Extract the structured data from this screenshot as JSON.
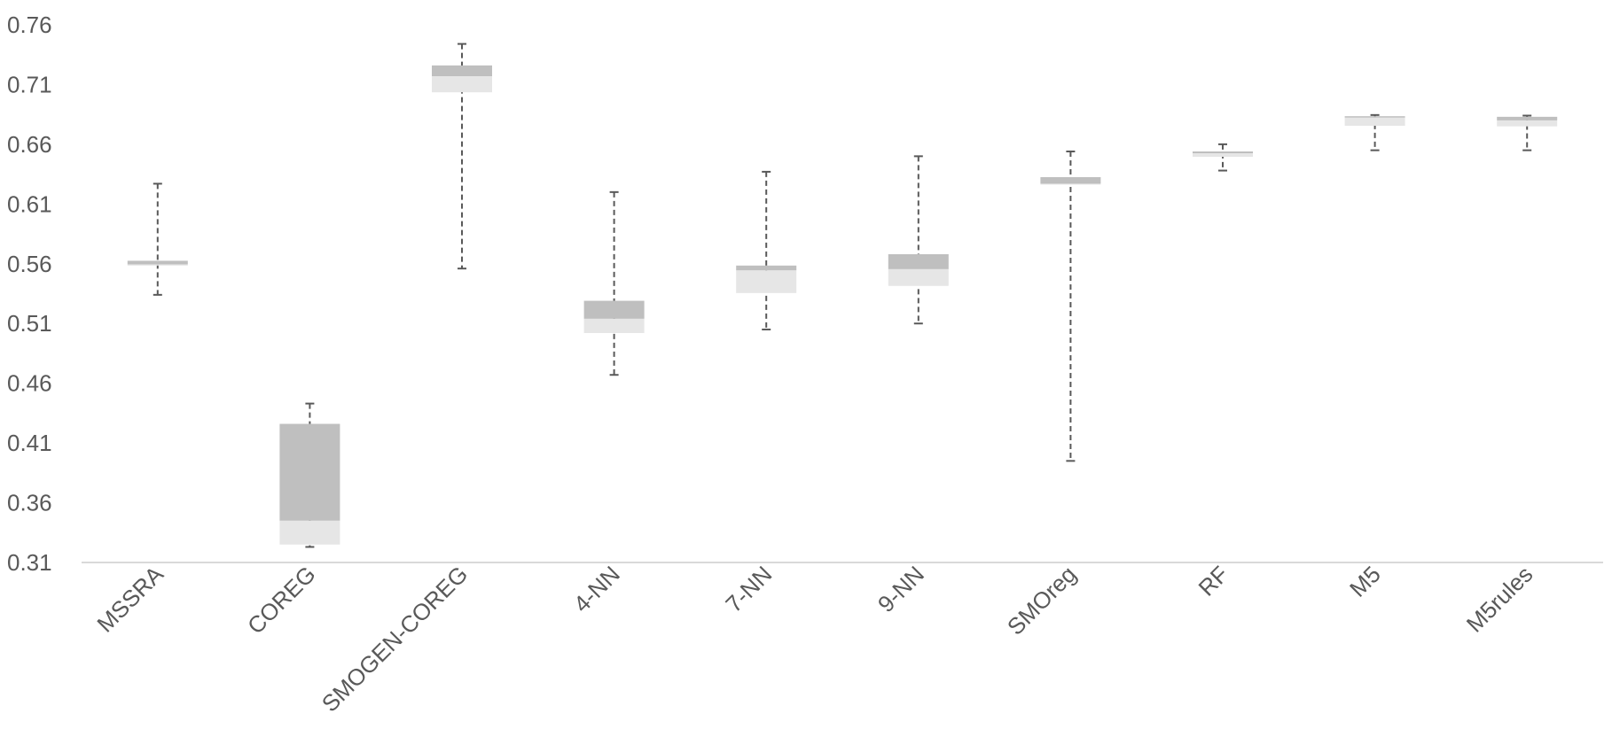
{
  "chart_data": {
    "type": "box",
    "ylim": [
      0.31,
      0.76
    ],
    "yticks": [
      "0.31",
      "0.36",
      "0.41",
      "0.46",
      "0.51",
      "0.56",
      "0.61",
      "0.66",
      "0.71",
      "0.76"
    ],
    "grid": false,
    "colors": {
      "upper_box": "#bfbfbf",
      "lower_box": "#e6e6e6",
      "whisker": "#595959",
      "axis": "#d9d9d9",
      "text": "#595959"
    },
    "categories": [
      "MSSRA",
      "COREG",
      "SMOGEN-COREG",
      "4-NN",
      "7-NN",
      "9-NN",
      "SMOreg",
      "RF",
      "M5",
      "M5rules"
    ],
    "boxes": [
      {
        "label": "MSSRA",
        "min": 0.534,
        "q1": 0.5585,
        "median": 0.5595,
        "q3": 0.5625,
        "max": 0.627
      },
      {
        "label": "COREG",
        "min": 0.323,
        "q1": 0.325,
        "median": 0.345,
        "q3": 0.426,
        "max": 0.443
      },
      {
        "label": "SMOGEN-COREG",
        "min": 0.556,
        "q1": 0.7035,
        "median": 0.717,
        "q3": 0.726,
        "max": 0.744
      },
      {
        "label": "4-NN",
        "min": 0.467,
        "q1": 0.502,
        "median": 0.514,
        "q3": 0.529,
        "max": 0.62
      },
      {
        "label": "7-NN",
        "min": 0.505,
        "q1": 0.5355,
        "median": 0.5545,
        "q3": 0.5585,
        "max": 0.637
      },
      {
        "label": "9-NN",
        "min": 0.51,
        "q1": 0.5415,
        "median": 0.5555,
        "q3": 0.568,
        "max": 0.65
      },
      {
        "label": "SMOreg",
        "min": 0.395,
        "q1": 0.6265,
        "median": 0.627,
        "q3": 0.6325,
        "max": 0.654
      },
      {
        "label": "RF",
        "min": 0.638,
        "q1": 0.6495,
        "median": 0.6525,
        "q3": 0.654,
        "max": 0.66
      },
      {
        "label": "M5",
        "min": 0.655,
        "q1": 0.6755,
        "median": 0.6825,
        "q3": 0.6835,
        "max": 0.6845
      },
      {
        "label": "M5rules",
        "min": 0.655,
        "q1": 0.675,
        "median": 0.68,
        "q3": 0.683,
        "max": 0.684
      }
    ]
  }
}
